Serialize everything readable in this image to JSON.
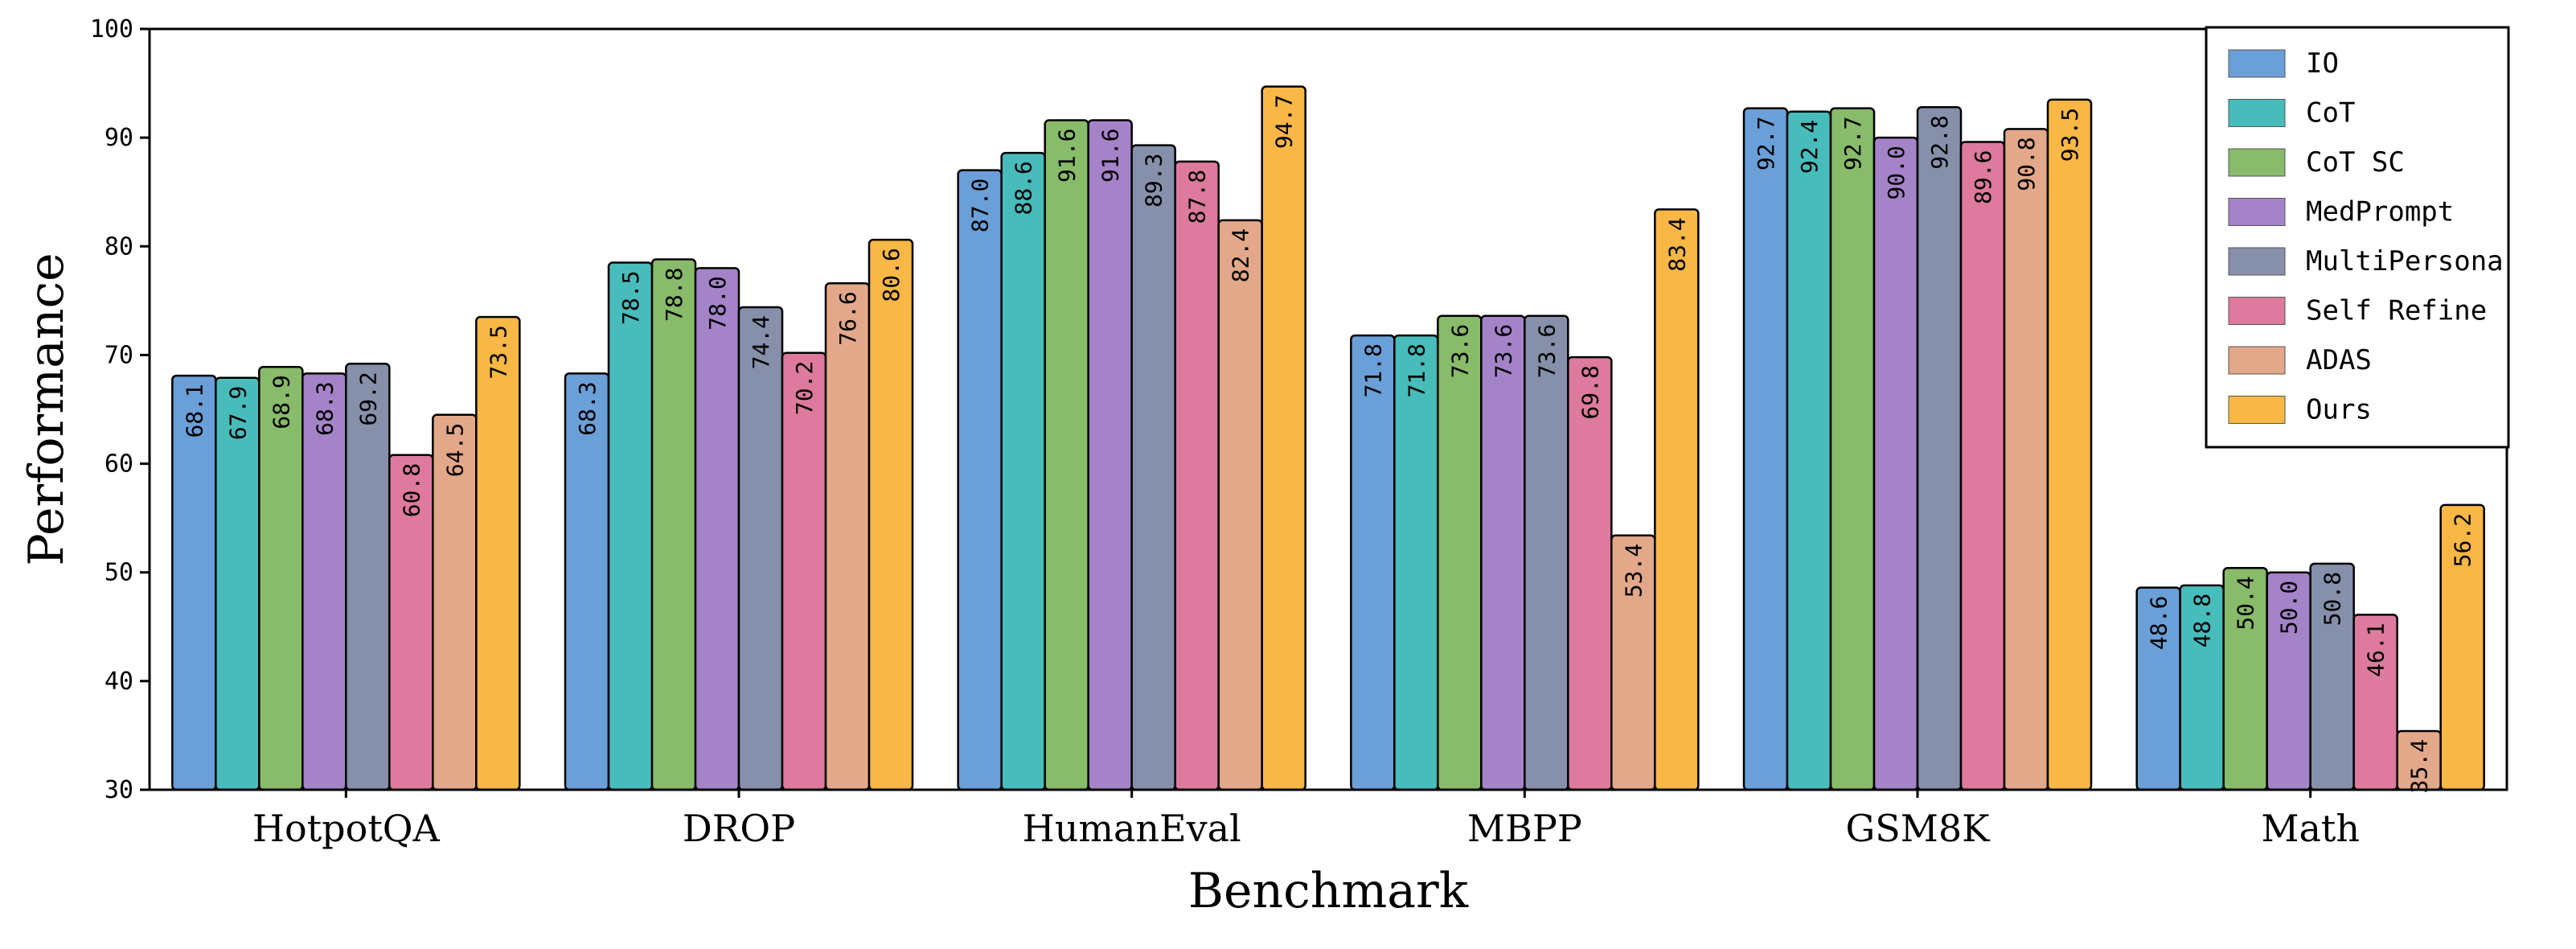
{
  "chart_data": {
    "type": "bar",
    "title": "",
    "xlabel": "Benchmark",
    "ylabel": "Performance",
    "ylim": [
      30,
      100
    ],
    "yticks": [
      30,
      40,
      50,
      60,
      70,
      80,
      90,
      100
    ],
    "grid": false,
    "legend_position": "top-right",
    "categories": [
      "HotpotQA",
      "DROP",
      "HumanEval",
      "MBPP",
      "GSM8K",
      "Math"
    ],
    "series": [
      {
        "name": "IO",
        "color": "#6a9fd8",
        "values": [
          68.1,
          68.3,
          87.0,
          71.8,
          92.7,
          48.6
        ]
      },
      {
        "name": "CoT",
        "color": "#47bcbb",
        "values": [
          67.9,
          78.5,
          88.6,
          71.8,
          92.4,
          48.8
        ]
      },
      {
        "name": "CoT SC",
        "color": "#88bb6a",
        "values": [
          68.9,
          78.8,
          91.6,
          73.6,
          92.7,
          50.4
        ]
      },
      {
        "name": "MedPrompt",
        "color": "#a483c8",
        "values": [
          68.3,
          78.0,
          91.6,
          73.6,
          90.0,
          50.0
        ]
      },
      {
        "name": "MultiPersona",
        "color": "#8690aa",
        "values": [
          69.2,
          74.4,
          89.3,
          73.6,
          92.8,
          50.8
        ]
      },
      {
        "name": "Self Refine",
        "color": "#dd7a9e",
        "values": [
          60.8,
          70.2,
          87.8,
          69.8,
          89.6,
          46.1
        ]
      },
      {
        "name": "ADAS",
        "color": "#e2a889",
        "values": [
          64.5,
          76.6,
          82.4,
          53.4,
          90.8,
          35.4
        ]
      },
      {
        "name": "Ours",
        "color": "#f9b745",
        "values": [
          73.5,
          80.6,
          94.7,
          83.4,
          93.5,
          56.2
        ]
      }
    ]
  }
}
